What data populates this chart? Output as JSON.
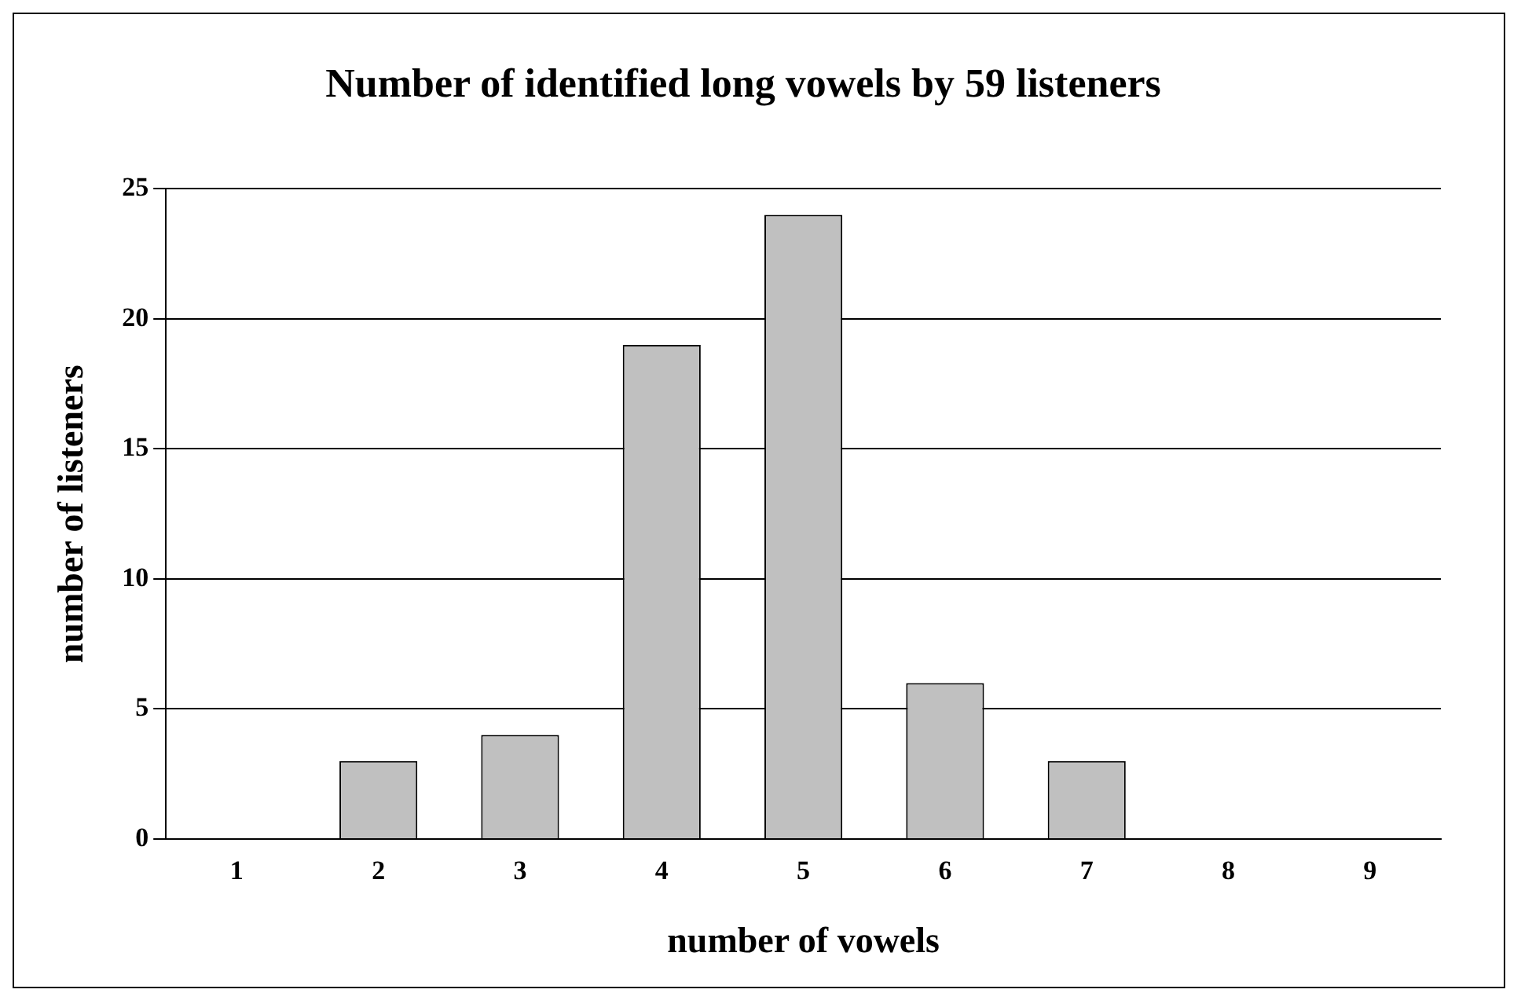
{
  "chart_data": {
    "type": "bar",
    "title": "Number of identified long vowels by 59 listeners",
    "xlabel": "number of vowels",
    "ylabel": "number of listeners",
    "categories": [
      "1",
      "2",
      "3",
      "4",
      "5",
      "6",
      "7",
      "8",
      "9"
    ],
    "values": [
      0,
      3,
      4,
      19,
      24,
      6,
      3,
      0,
      0
    ],
    "color": "#c0c0c0",
    "ylim": [
      0,
      25
    ],
    "yticks": [
      0,
      5,
      10,
      15,
      20,
      25
    ],
    "grid": "y",
    "legend": false
  }
}
